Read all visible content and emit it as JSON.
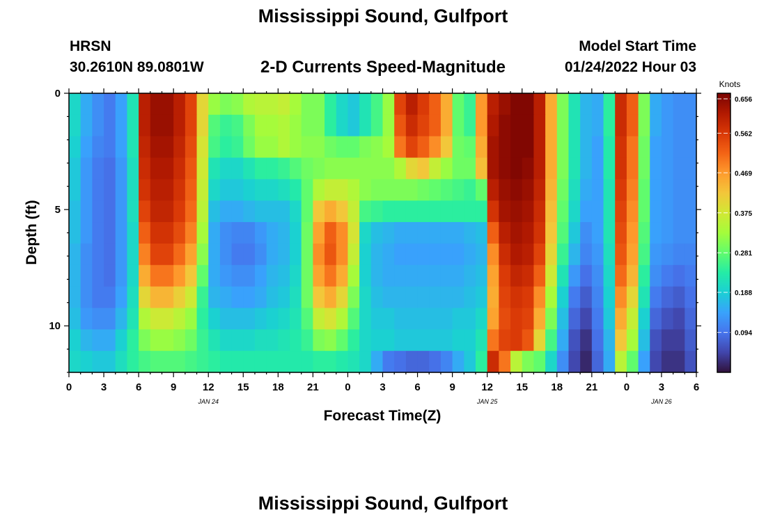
{
  "page_title": "Mississippi Sound, Gulfport",
  "footer_title": "Mississippi Sound, Gulfport",
  "station": {
    "id": "HRSN",
    "coords": "30.2610N  89.0801W"
  },
  "plot_title": "2-D Currents Speed-Magnitude",
  "model_start": {
    "label": "Model Start Time",
    "value": "01/24/2022 Hour 03"
  },
  "chart_data": {
    "type": "heatmap",
    "title": "2-D Currents Speed-Magnitude",
    "xlabel": "Forecast Time(Z)",
    "ylabel": "Depth (ft)",
    "x_tick_labels": [
      "0",
      "3",
      "6",
      "9",
      "12",
      "15",
      "18",
      "21",
      "0",
      "3",
      "6",
      "9",
      "12",
      "15",
      "18",
      "21",
      "0",
      "3",
      "6"
    ],
    "x_range_hours": [
      0,
      54
    ],
    "date_labels": [
      {
        "text": "JAN 24",
        "hour": 12
      },
      {
        "text": "JAN 25",
        "hour": 36
      },
      {
        "text": "JAN 26",
        "hour": 51
      }
    ],
    "y_tick_labels": [
      "0",
      "5",
      "10"
    ],
    "y_range_ft": [
      0,
      12
    ],
    "colorbar": {
      "title": "Knots",
      "range": [
        0,
        0.656
      ],
      "tick_labels": [
        "0.656",
        "0.562",
        "0.469",
        "0.375",
        "0.281",
        "0.188",
        "0.094"
      ],
      "tick_values": [
        0.656,
        0.562,
        0.469,
        0.375,
        0.281,
        0.188,
        0.094
      ],
      "colormap": [
        "#30123b",
        "#4145ab",
        "#4675ed",
        "#39a2fc",
        "#1bcfd4",
        "#24eca6",
        "#61fc6c",
        "#a4fc3b",
        "#d1e834",
        "#f3c63a",
        "#fe9b2d",
        "#f36315",
        "#d93806",
        "#b11901",
        "#7a0402"
      ]
    },
    "grid_columns_hours": [
      0,
      1,
      2,
      3,
      4,
      5,
      6,
      7,
      8,
      9,
      10,
      11,
      12,
      13,
      14,
      15,
      16,
      17,
      18,
      19,
      20,
      21,
      22,
      23,
      24,
      25,
      26,
      27,
      28,
      29,
      30,
      31,
      32,
      33,
      34,
      35,
      36,
      37,
      38,
      39,
      40,
      41,
      42,
      43,
      44,
      45,
      46,
      47,
      48,
      49,
      50,
      51,
      52,
      53
    ],
    "depth_layers_ft": [
      0,
      1,
      2,
      3,
      4,
      5,
      6,
      7,
      8,
      9,
      10,
      11,
      12
    ],
    "speed_knots": [
      [
        0.2,
        0.15,
        0.12,
        0.1,
        0.14,
        0.22,
        0.6,
        0.63,
        0.63,
        0.6,
        0.55,
        0.4,
        0.32,
        0.3,
        0.31,
        0.34,
        0.35,
        0.35,
        0.36,
        0.33,
        0.3,
        0.3,
        0.24,
        0.2,
        0.18,
        0.22,
        0.26,
        0.32,
        0.55,
        0.6,
        0.56,
        0.52,
        0.45,
        0.28,
        0.25,
        0.47,
        0.6,
        0.63,
        0.65,
        0.65,
        0.6,
        0.45,
        0.3,
        0.22,
        0.16,
        0.15,
        0.24,
        0.58,
        0.52,
        0.3,
        0.15,
        0.13,
        0.12,
        0.12
      ],
      [
        0.2,
        0.15,
        0.12,
        0.1,
        0.14,
        0.22,
        0.6,
        0.63,
        0.63,
        0.6,
        0.55,
        0.4,
        0.27,
        0.25,
        0.26,
        0.3,
        0.33,
        0.33,
        0.34,
        0.32,
        0.3,
        0.3,
        0.24,
        0.2,
        0.18,
        0.22,
        0.26,
        0.32,
        0.53,
        0.58,
        0.55,
        0.52,
        0.45,
        0.28,
        0.25,
        0.47,
        0.61,
        0.64,
        0.65,
        0.65,
        0.6,
        0.45,
        0.3,
        0.22,
        0.16,
        0.15,
        0.24,
        0.58,
        0.52,
        0.3,
        0.15,
        0.13,
        0.12,
        0.12
      ],
      [
        0.19,
        0.14,
        0.11,
        0.1,
        0.14,
        0.22,
        0.59,
        0.62,
        0.62,
        0.59,
        0.54,
        0.38,
        0.26,
        0.24,
        0.25,
        0.29,
        0.32,
        0.32,
        0.34,
        0.32,
        0.31,
        0.31,
        0.29,
        0.28,
        0.28,
        0.3,
        0.31,
        0.33,
        0.5,
        0.55,
        0.52,
        0.48,
        0.42,
        0.29,
        0.28,
        0.45,
        0.62,
        0.64,
        0.65,
        0.65,
        0.6,
        0.45,
        0.3,
        0.22,
        0.16,
        0.14,
        0.23,
        0.57,
        0.5,
        0.29,
        0.14,
        0.13,
        0.12,
        0.12
      ],
      [
        0.18,
        0.13,
        0.1,
        0.09,
        0.13,
        0.21,
        0.58,
        0.61,
        0.61,
        0.58,
        0.53,
        0.37,
        0.22,
        0.2,
        0.2,
        0.22,
        0.24,
        0.24,
        0.25,
        0.27,
        0.29,
        0.3,
        0.31,
        0.31,
        0.31,
        0.31,
        0.31,
        0.31,
        0.34,
        0.4,
        0.42,
        0.36,
        0.32,
        0.29,
        0.29,
        0.43,
        0.62,
        0.64,
        0.65,
        0.64,
        0.6,
        0.45,
        0.3,
        0.22,
        0.16,
        0.14,
        0.23,
        0.57,
        0.5,
        0.29,
        0.14,
        0.13,
        0.12,
        0.12
      ],
      [
        0.18,
        0.13,
        0.1,
        0.09,
        0.13,
        0.21,
        0.57,
        0.6,
        0.6,
        0.57,
        0.52,
        0.36,
        0.2,
        0.18,
        0.18,
        0.19,
        0.2,
        0.2,
        0.21,
        0.23,
        0.28,
        0.34,
        0.36,
        0.36,
        0.34,
        0.31,
        0.3,
        0.3,
        0.3,
        0.3,
        0.29,
        0.28,
        0.27,
        0.26,
        0.25,
        0.28,
        0.6,
        0.63,
        0.64,
        0.63,
        0.59,
        0.44,
        0.29,
        0.21,
        0.15,
        0.14,
        0.22,
        0.56,
        0.49,
        0.28,
        0.14,
        0.13,
        0.12,
        0.12
      ],
      [
        0.17,
        0.13,
        0.1,
        0.09,
        0.13,
        0.21,
        0.55,
        0.59,
        0.59,
        0.56,
        0.51,
        0.35,
        0.17,
        0.15,
        0.15,
        0.16,
        0.17,
        0.17,
        0.17,
        0.2,
        0.28,
        0.42,
        0.45,
        0.42,
        0.36,
        0.26,
        0.25,
        0.24,
        0.24,
        0.24,
        0.24,
        0.24,
        0.24,
        0.24,
        0.24,
        0.24,
        0.57,
        0.62,
        0.63,
        0.62,
        0.58,
        0.43,
        0.28,
        0.2,
        0.14,
        0.14,
        0.22,
        0.55,
        0.48,
        0.28,
        0.14,
        0.13,
        0.12,
        0.12
      ],
      [
        0.17,
        0.13,
        0.1,
        0.09,
        0.13,
        0.2,
        0.52,
        0.57,
        0.57,
        0.54,
        0.49,
        0.33,
        0.15,
        0.12,
        0.11,
        0.11,
        0.13,
        0.15,
        0.16,
        0.19,
        0.29,
        0.46,
        0.52,
        0.48,
        0.38,
        0.2,
        0.17,
        0.16,
        0.15,
        0.15,
        0.15,
        0.15,
        0.15,
        0.15,
        0.16,
        0.17,
        0.52,
        0.6,
        0.62,
        0.61,
        0.57,
        0.42,
        0.27,
        0.18,
        0.12,
        0.14,
        0.22,
        0.54,
        0.47,
        0.27,
        0.14,
        0.13,
        0.12,
        0.12
      ],
      [
        0.16,
        0.12,
        0.1,
        0.09,
        0.13,
        0.2,
        0.49,
        0.55,
        0.55,
        0.51,
        0.46,
        0.31,
        0.15,
        0.12,
        0.1,
        0.1,
        0.12,
        0.15,
        0.16,
        0.19,
        0.29,
        0.48,
        0.53,
        0.48,
        0.36,
        0.19,
        0.16,
        0.15,
        0.14,
        0.14,
        0.14,
        0.14,
        0.14,
        0.14,
        0.15,
        0.16,
        0.48,
        0.58,
        0.61,
        0.6,
        0.55,
        0.4,
        0.25,
        0.16,
        0.11,
        0.13,
        0.21,
        0.53,
        0.46,
        0.26,
        0.13,
        0.12,
        0.11,
        0.11
      ],
      [
        0.16,
        0.12,
        0.1,
        0.09,
        0.13,
        0.2,
        0.45,
        0.5,
        0.5,
        0.47,
        0.42,
        0.28,
        0.15,
        0.13,
        0.12,
        0.12,
        0.14,
        0.16,
        0.17,
        0.2,
        0.29,
        0.46,
        0.5,
        0.45,
        0.33,
        0.19,
        0.16,
        0.15,
        0.15,
        0.15,
        0.15,
        0.15,
        0.15,
        0.15,
        0.16,
        0.17,
        0.46,
        0.56,
        0.59,
        0.58,
        0.52,
        0.37,
        0.22,
        0.13,
        0.09,
        0.12,
        0.2,
        0.51,
        0.44,
        0.24,
        0.12,
        0.1,
        0.09,
        0.1
      ],
      [
        0.16,
        0.12,
        0.1,
        0.1,
        0.14,
        0.21,
        0.4,
        0.44,
        0.44,
        0.41,
        0.37,
        0.25,
        0.16,
        0.15,
        0.14,
        0.14,
        0.15,
        0.17,
        0.18,
        0.21,
        0.29,
        0.42,
        0.45,
        0.4,
        0.3,
        0.2,
        0.17,
        0.16,
        0.16,
        0.16,
        0.16,
        0.16,
        0.16,
        0.16,
        0.17,
        0.18,
        0.45,
        0.55,
        0.57,
        0.56,
        0.48,
        0.33,
        0.19,
        0.1,
        0.07,
        0.11,
        0.19,
        0.48,
        0.4,
        0.22,
        0.1,
        0.08,
        0.07,
        0.09
      ],
      [
        0.17,
        0.13,
        0.12,
        0.12,
        0.16,
        0.22,
        0.34,
        0.37,
        0.37,
        0.35,
        0.32,
        0.24,
        0.19,
        0.17,
        0.17,
        0.17,
        0.18,
        0.19,
        0.2,
        0.22,
        0.27,
        0.36,
        0.38,
        0.34,
        0.27,
        0.2,
        0.18,
        0.18,
        0.17,
        0.17,
        0.17,
        0.17,
        0.17,
        0.18,
        0.18,
        0.2,
        0.46,
        0.54,
        0.56,
        0.55,
        0.45,
        0.3,
        0.17,
        0.08,
        0.05,
        0.1,
        0.18,
        0.45,
        0.36,
        0.19,
        0.08,
        0.06,
        0.05,
        0.08
      ],
      [
        0.19,
        0.16,
        0.15,
        0.15,
        0.19,
        0.24,
        0.3,
        0.32,
        0.32,
        0.31,
        0.29,
        0.25,
        0.22,
        0.2,
        0.2,
        0.2,
        0.21,
        0.21,
        0.22,
        0.23,
        0.25,
        0.3,
        0.31,
        0.28,
        0.24,
        0.2,
        0.19,
        0.19,
        0.18,
        0.18,
        0.18,
        0.18,
        0.18,
        0.19,
        0.19,
        0.22,
        0.5,
        0.55,
        0.56,
        0.53,
        0.4,
        0.26,
        0.15,
        0.06,
        0.03,
        0.09,
        0.16,
        0.42,
        0.33,
        0.17,
        0.06,
        0.04,
        0.04,
        0.07
      ],
      [
        0.2,
        0.19,
        0.18,
        0.18,
        0.21,
        0.24,
        0.26,
        0.27,
        0.27,
        0.27,
        0.26,
        0.25,
        0.24,
        0.23,
        0.23,
        0.23,
        0.23,
        0.23,
        0.23,
        0.23,
        0.23,
        0.24,
        0.24,
        0.23,
        0.22,
        0.2,
        0.15,
        0.1,
        0.09,
        0.08,
        0.08,
        0.09,
        0.11,
        0.15,
        0.18,
        0.24,
        0.58,
        0.5,
        0.35,
        0.3,
        0.28,
        0.2,
        0.12,
        0.05,
        0.02,
        0.08,
        0.15,
        0.35,
        0.28,
        0.14,
        0.05,
        0.03,
        0.03,
        0.06
      ]
    ]
  }
}
